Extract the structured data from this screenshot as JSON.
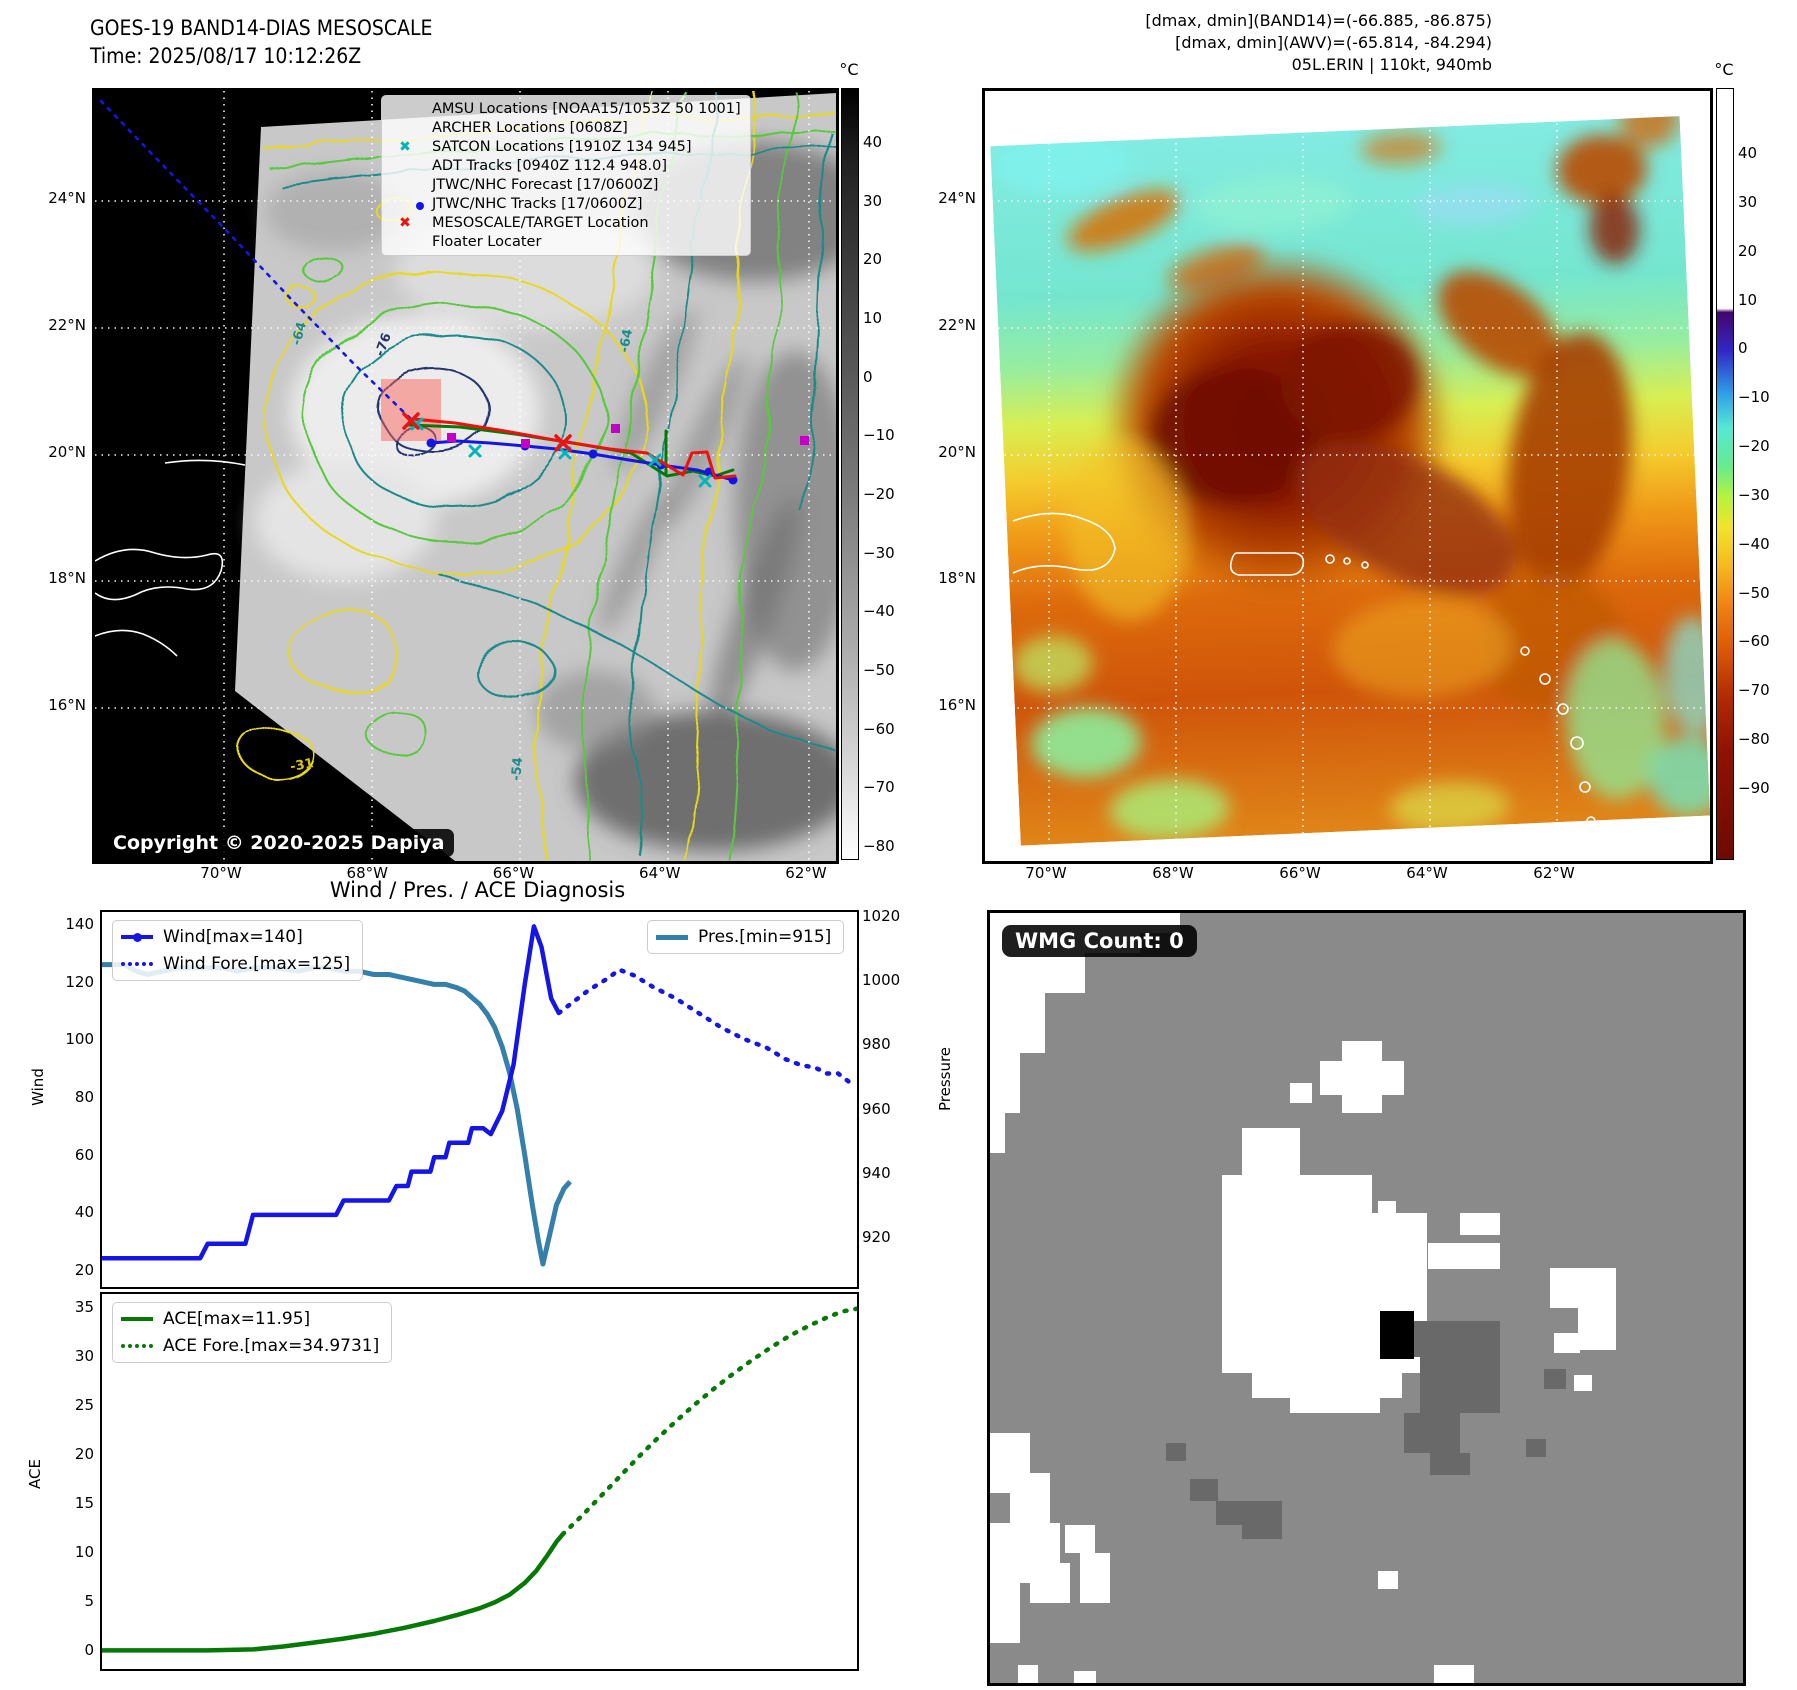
{
  "header": {
    "title_line1": "GOES-19 BAND14-DIAS MESOSCALE",
    "title_line2": "Time: 2025/08/17 10:12:26Z",
    "info_line1": "[dmax, dmin](BAND14)=(-66.885, -86.875)",
    "info_line2": "[dmax, dmin](AWV)=(-65.814, -84.294)",
    "info_line3": "05L.ERIN | 110kt, 940mb"
  },
  "maps": {
    "lat_ticks": [
      "24°N",
      "22°N",
      "20°N",
      "18°N",
      "16°N"
    ],
    "lon_ticks": [
      "70°W",
      "68°W",
      "66°W",
      "64°W",
      "62°W"
    ],
    "band14": {
      "legend": [
        {
          "label": "AMSU Locations [NOAA15/1053Z 50 1001]",
          "marker": "magenta-square"
        },
        {
          "label": "ARCHER Locations [0608Z]",
          "marker": "magenta-square"
        },
        {
          "label": "SATCON Locations [1910Z 134 945]",
          "marker": "cyan-x"
        },
        {
          "label": "ADT Tracks [0940Z 112.4 948.0]",
          "marker": "green-line"
        },
        {
          "label": "JTWC/NHC Forecast [17/0600Z]",
          "marker": "blue-dotted-line"
        },
        {
          "label": "JTWC/NHC Tracks [17/0600Z]",
          "marker": "blue-line-with-dot"
        },
        {
          "label": "MESOSCALE/TARGET Location",
          "marker": "red-x"
        },
        {
          "label": "Floater Locater",
          "marker": "red-line"
        }
      ],
      "copyright": "Copyright © 2020-2025 Dapiya",
      "contour_labels": [
        "-76",
        "-64",
        "-64",
        "-54",
        "-31"
      ],
      "colorbar": {
        "unit": "°C",
        "ticks": [
          "40",
          "30",
          "20",
          "10",
          "0",
          "−10",
          "−20",
          "−30",
          "−40",
          "−50",
          "−60",
          "−70",
          "−80"
        ]
      }
    },
    "awv": {
      "colorbar": {
        "unit": "°C",
        "ticks": [
          "40",
          "30",
          "20",
          "10",
          "0",
          "−10",
          "−20",
          "−30",
          "−40",
          "−50",
          "−60",
          "−70",
          "−80",
          "−90"
        ]
      }
    }
  },
  "charts": {
    "title": "Wind / Pres. / ACE Diagnosis",
    "wind_axis_label": "Wind",
    "pressure_axis_label": "Pressure",
    "ace_axis_label": "ACE",
    "wind_ticks": [
      "140",
      "120",
      "100",
      "80",
      "60",
      "40",
      "20"
    ],
    "pressure_ticks": [
      "1020",
      "1000",
      "980",
      "960",
      "940",
      "920"
    ],
    "ace_ticks": [
      "35",
      "30",
      "25",
      "20",
      "15",
      "10",
      "5",
      "0"
    ]
  },
  "wmg": {
    "count_label": "WMG Count: 0"
  },
  "chart_data": {
    "type": "line",
    "title": "Wind / Pres. / ACE Diagnosis",
    "x_ticks_shown": false,
    "xlim": [
      0,
      100
    ],
    "panels": [
      {
        "name": "wind_pressure",
        "ylabel_left": "Wind",
        "ylabel_right": "Pressure",
        "ylim_left": [
          20,
          140
        ],
        "ylim_right": [
          915,
          1020
        ],
        "legend_positions": [
          "upper left",
          "upper right"
        ],
        "series": [
          {
            "name": "Wind[max=140]",
            "style": "solid",
            "color": "#1515e6",
            "axis": "wind",
            "data": [
              [
                0,
                25
              ],
              [
                13,
                25
              ],
              [
                14,
                30
              ],
              [
                19,
                30
              ],
              [
                20,
                40
              ],
              [
                31,
                40
              ],
              [
                32,
                45
              ],
              [
                38,
                45
              ],
              [
                39,
                50
              ],
              [
                40.5,
                50
              ],
              [
                41,
                55
              ],
              [
                43.5,
                55
              ],
              [
                44,
                60
              ],
              [
                45.5,
                60
              ],
              [
                46,
                65
              ],
              [
                48.5,
                65
              ],
              [
                49,
                70
              ],
              [
                50.5,
                70
              ],
              [
                51.5,
                68
              ],
              [
                53,
                76
              ],
              [
                54.5,
                92
              ],
              [
                56,
                120
              ],
              [
                57.2,
                140
              ],
              [
                58.2,
                133
              ],
              [
                59.5,
                115
              ],
              [
                60.5,
                110
              ]
            ]
          },
          {
            "name": "Wind Fore.[max=125]",
            "style": "dotted",
            "color": "#1515e6",
            "axis": "wind",
            "data": [
              [
                60.5,
                110
              ],
              [
                62,
                113
              ],
              [
                64.5,
                118
              ],
              [
                67,
                122
              ],
              [
                68.5,
                125
              ],
              [
                70.5,
                123
              ],
              [
                73,
                119
              ],
              [
                76,
                115
              ],
              [
                79,
                110
              ],
              [
                82,
                105
              ],
              [
                85,
                101
              ],
              [
                88,
                98
              ],
              [
                90.5,
                94
              ],
              [
                92.5,
                92
              ],
              [
                94.5,
                91
              ],
              [
                96,
                89
              ],
              [
                97.5,
                89
              ],
              [
                99,
                86
              ]
            ]
          },
          {
            "name": "Pres.[min=915]",
            "style": "solid",
            "color": "#3580ab",
            "axis": "pressure",
            "data": [
              [
                0,
                1006
              ],
              [
                3,
                1006
              ],
              [
                4.5,
                1004
              ],
              [
                6,
                1003
              ],
              [
                8,
                1004
              ],
              [
                10,
                1005
              ],
              [
                13,
                1005
              ],
              [
                16,
                1005
              ],
              [
                18,
                1004
              ],
              [
                20,
                1005
              ],
              [
                23,
                1005
              ],
              [
                26,
                1004
              ],
              [
                28,
                1005
              ],
              [
                30,
                1005
              ],
              [
                32,
                1004
              ],
              [
                34,
                1004
              ],
              [
                36,
                1003
              ],
              [
                38,
                1003
              ],
              [
                40,
                1002
              ],
              [
                42,
                1001
              ],
              [
                44,
                1000
              ],
              [
                45.5,
                1000
              ],
              [
                47,
                999
              ],
              [
                48,
                998
              ],
              [
                49,
                996
              ],
              [
                50,
                994
              ],
              [
                51,
                991
              ],
              [
                52,
                987
              ],
              [
                53,
                981
              ],
              [
                54,
                973
              ],
              [
                55,
                962
              ],
              [
                56,
                948
              ],
              [
                57,
                933
              ],
              [
                57.8,
                922
              ],
              [
                58.4,
                915
              ],
              [
                59.2,
                923
              ],
              [
                60.2,
                933
              ],
              [
                61.2,
                938
              ],
              [
                62,
                940
              ]
            ]
          }
        ]
      },
      {
        "name": "ace",
        "ylabel_left": "ACE",
        "ylim_left": [
          0,
          35
        ],
        "legend_positions": [
          "upper left"
        ],
        "series": [
          {
            "name": "ACE[max=11.95]",
            "style": "solid",
            "color": "#067806",
            "axis": "ace",
            "data": [
              [
                0,
                0.1
              ],
              [
                8,
                0.1
              ],
              [
                14,
                0.1
              ],
              [
                20,
                0.2
              ],
              [
                24,
                0.5
              ],
              [
                28,
                0.9
              ],
              [
                32,
                1.3
              ],
              [
                36,
                1.8
              ],
              [
                40,
                2.4
              ],
              [
                44,
                3.1
              ],
              [
                47,
                3.7
              ],
              [
                50,
                4.4
              ],
              [
                52,
                5.0
              ],
              [
                54,
                5.8
              ],
              [
                56,
                7.0
              ],
              [
                57.5,
                8.2
              ],
              [
                59,
                9.8
              ],
              [
                60.2,
                11.2
              ],
              [
                61,
                11.95
              ]
            ]
          },
          {
            "name": "ACE Fore.[max=34.9731]",
            "style": "dotted",
            "color": "#067806",
            "axis": "ace",
            "data": [
              [
                61,
                11.95
              ],
              [
                63.5,
                13.8
              ],
              [
                66,
                15.8
              ],
              [
                68.5,
                17.8
              ],
              [
                71,
                19.8
              ],
              [
                73.5,
                21.7
              ],
              [
                76,
                23.5
              ],
              [
                78.5,
                25.2
              ],
              [
                81,
                26.8
              ],
              [
                83.5,
                28.3
              ],
              [
                86,
                29.7
              ],
              [
                88.5,
                31
              ],
              [
                91,
                32.2
              ],
              [
                93.5,
                33.2
              ],
              [
                96,
                34.1
              ],
              [
                98,
                34.7
              ],
              [
                100,
                35
              ]
            ]
          }
        ]
      }
    ]
  }
}
